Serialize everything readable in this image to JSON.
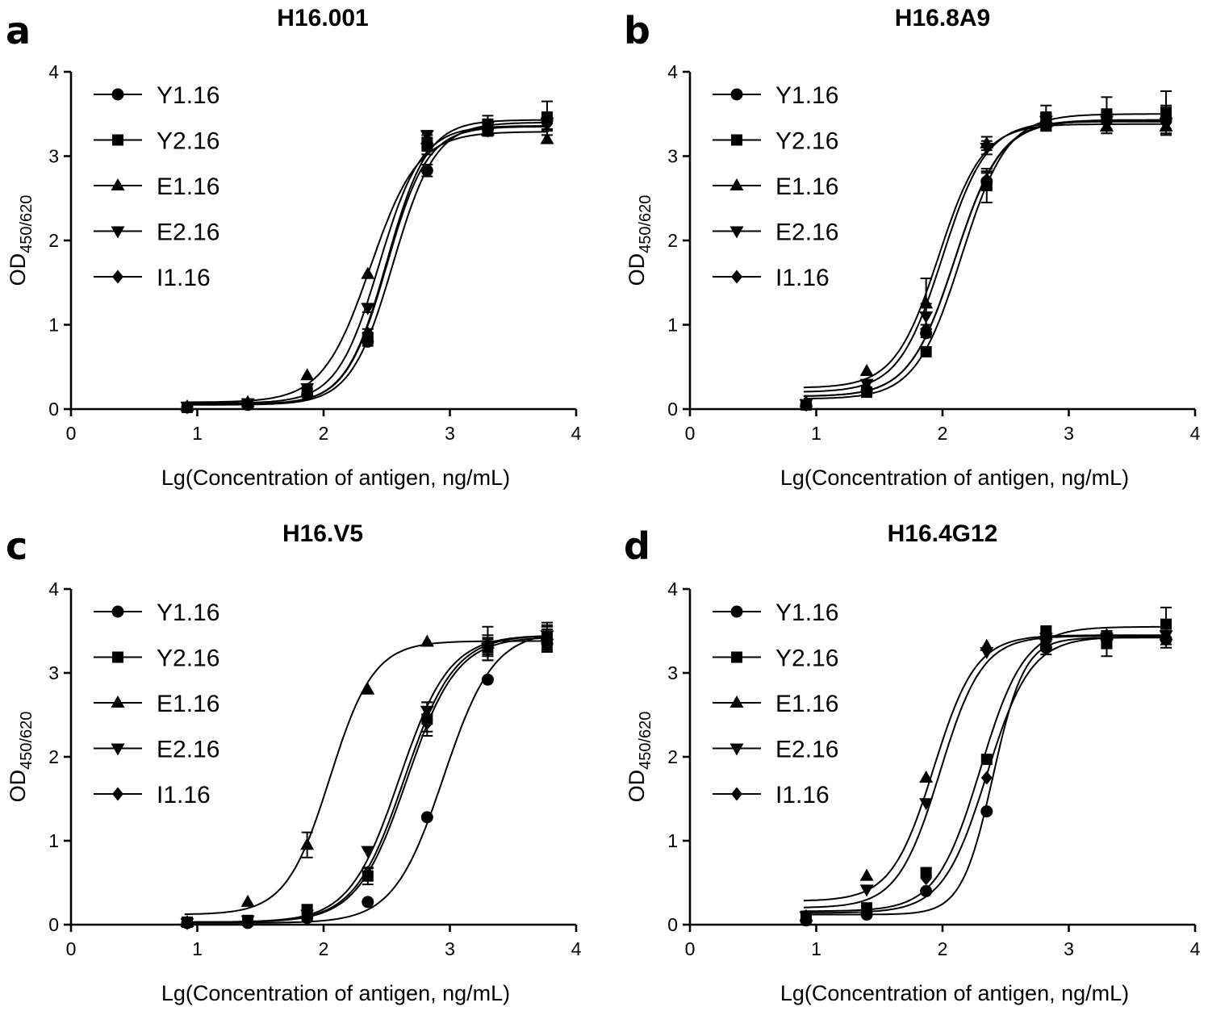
{
  "figure": {
    "panels": [
      "a",
      "b",
      "c",
      "d"
    ]
  },
  "chart_data": [
    {
      "type": "scatter",
      "panel_letter": "a",
      "title": "H16.001",
      "xlabel": "Lg(Concentration of antigen, ng/mL)",
      "ylabel": "OD",
      "ylabel_sub": "450/620",
      "xlim": [
        0,
        4
      ],
      "ylim": [
        0,
        4
      ],
      "xticks": [
        "0",
        "1",
        "2",
        "3",
        "4"
      ],
      "yticks": [
        "0",
        "1",
        "2",
        "3",
        "4"
      ],
      "x": [
        0.92,
        1.4,
        1.87,
        2.35,
        2.82,
        3.3,
        3.77
      ],
      "series": [
        {
          "name": "Y1.16",
          "marker": "circle",
          "values": [
            0.02,
            0.05,
            0.17,
            0.8,
            2.83,
            3.32,
            3.42
          ],
          "errors": [
            0,
            0,
            0,
            0.05,
            0.07,
            0.08,
            0.1
          ],
          "fit": {
            "bottom": 0.05,
            "top": 3.4,
            "ec50": 2.55,
            "hill": 2.6
          }
        },
        {
          "name": "Y2.16",
          "marker": "square",
          "values": [
            0.02,
            0.06,
            0.2,
            0.85,
            3.12,
            3.38,
            3.45
          ],
          "errors": [
            0,
            0,
            0,
            0.05,
            0.1,
            0.1,
            0.2
          ],
          "fit": {
            "bottom": 0.06,
            "top": 3.43,
            "ec50": 2.5,
            "hill": 2.7
          }
        },
        {
          "name": "E1.16",
          "marker": "triangle-up",
          "values": [
            0.03,
            0.08,
            0.4,
            1.6,
            3.2,
            3.3,
            3.2
          ],
          "errors": [
            0,
            0,
            0,
            0,
            0.05,
            0.06,
            0
          ],
          "fit": {
            "bottom": 0.08,
            "top": 3.29,
            "ec50": 2.37,
            "hill": 2.3
          }
        },
        {
          "name": "E2.16",
          "marker": "triangle-down",
          "values": [
            0.03,
            0.07,
            0.25,
            1.2,
            3.25,
            3.35,
            3.4
          ],
          "errors": [
            0,
            0,
            0,
            0.05,
            0.05,
            0.06,
            0.08
          ],
          "fit": {
            "bottom": 0.07,
            "top": 3.36,
            "ec50": 2.44,
            "hill": 2.6
          }
        },
        {
          "name": "I1.16",
          "marker": "diamond",
          "values": [
            0.02,
            0.06,
            0.18,
            0.9,
            3.15,
            3.3,
            3.38
          ],
          "errors": [
            0,
            0,
            0,
            0.05,
            0.05,
            0.06,
            0.08
          ],
          "fit": {
            "bottom": 0.06,
            "top": 3.35,
            "ec50": 2.5,
            "hill": 2.7
          }
        }
      ]
    },
    {
      "type": "scatter",
      "panel_letter": "b",
      "title": "H16.8A9",
      "xlabel": "Lg(Concentration of antigen, ng/mL)",
      "ylabel": "OD",
      "ylabel_sub": "450/620",
      "xlim": [
        0,
        4
      ],
      "ylim": [
        0,
        4
      ],
      "xticks": [
        "0",
        "1",
        "2",
        "3",
        "4"
      ],
      "yticks": [
        "0",
        "1",
        "2",
        "3",
        "4"
      ],
      "x": [
        0.92,
        1.4,
        1.87,
        2.35,
        2.82,
        3.3,
        3.77
      ],
      "series": [
        {
          "name": "Y1.16",
          "marker": "circle",
          "values": [
            0.05,
            0.22,
            0.9,
            2.7,
            3.4,
            3.42,
            3.42
          ],
          "errors": [
            0,
            0,
            0.05,
            0.1,
            0.1,
            0.1,
            0.1
          ],
          "fit": {
            "bottom": 0.15,
            "top": 3.42,
            "ec50": 2.1,
            "hill": 2.4
          }
        },
        {
          "name": "Y2.16",
          "marker": "square",
          "values": [
            0.05,
            0.2,
            0.68,
            2.65,
            3.45,
            3.5,
            3.52
          ],
          "errors": [
            0,
            0,
            0,
            0.2,
            0.15,
            0.2,
            0.25
          ],
          "fit": {
            "bottom": 0.12,
            "top": 3.5,
            "ec50": 2.15,
            "hill": 2.4
          }
        },
        {
          "name": "E1.16",
          "marker": "triangle-up",
          "values": [
            0.08,
            0.45,
            1.25,
            3.15,
            3.4,
            3.35,
            3.35
          ],
          "errors": [
            0,
            0,
            0.3,
            0.08,
            0.08,
            0.08,
            0.1
          ],
          "fit": {
            "bottom": 0.25,
            "top": 3.38,
            "ec50": 1.97,
            "hill": 2.5
          }
        },
        {
          "name": "E2.16",
          "marker": "triangle-down",
          "values": [
            0.06,
            0.3,
            1.1,
            3.1,
            3.42,
            3.42,
            3.4
          ],
          "errors": [
            0,
            0,
            0.15,
            0.08,
            0.08,
            0.1,
            0.1
          ],
          "fit": {
            "bottom": 0.2,
            "top": 3.41,
            "ec50": 2.0,
            "hill": 2.5
          }
        },
        {
          "name": "I1.16",
          "marker": "diamond",
          "values": [
            0.05,
            0.25,
            0.95,
            2.72,
            3.42,
            3.4,
            3.45
          ],
          "errors": [
            0,
            0,
            0.05,
            0.1,
            0.1,
            0.1,
            0.15
          ],
          "fit": {
            "bottom": 0.15,
            "top": 3.43,
            "ec50": 2.1,
            "hill": 2.4
          }
        }
      ]
    },
    {
      "type": "scatter",
      "panel_letter": "c",
      "title": "H16.V5",
      "xlabel": "Lg(Concentration of antigen, ng/mL)",
      "ylabel": "OD",
      "ylabel_sub": "450/620",
      "xlim": [
        0,
        4
      ],
      "ylim": [
        0,
        4
      ],
      "xticks": [
        "0",
        "1",
        "2",
        "3",
        "4"
      ],
      "yticks": [
        "0",
        "1",
        "2",
        "3",
        "4"
      ],
      "x": [
        0.92,
        1.4,
        1.87,
        2.35,
        2.82,
        3.3,
        3.77
      ],
      "series": [
        {
          "name": "Y1.16",
          "marker": "circle",
          "values": [
            0.02,
            0.02,
            0.08,
            0.27,
            1.28,
            2.92,
            3.35
          ],
          "errors": [
            0,
            0,
            0,
            0,
            0,
            0,
            0.1
          ],
          "fit": {
            "bottom": 0.02,
            "top": 3.5,
            "ec50": 2.95,
            "hill": 2.2
          }
        },
        {
          "name": "Y2.16",
          "marker": "square",
          "values": [
            0.03,
            0.05,
            0.18,
            0.58,
            2.45,
            3.3,
            3.42
          ],
          "errors": [
            0,
            0,
            0.05,
            0.1,
            0.2,
            0.15,
            0.15
          ],
          "fit": {
            "bottom": 0.03,
            "top": 3.45,
            "ec50": 2.64,
            "hill": 2.2
          }
        },
        {
          "name": "E1.16",
          "marker": "triangle-up",
          "values": [
            0.03,
            0.27,
            0.95,
            2.8,
            3.37,
            3.35,
            3.45
          ],
          "errors": [
            0,
            0,
            0.15,
            0,
            0,
            0.2,
            0.15
          ],
          "fit": {
            "bottom": 0.12,
            "top": 3.38,
            "ec50": 2.05,
            "hill": 2.5
          }
        },
        {
          "name": "E2.16",
          "marker": "triangle-down",
          "values": [
            0.02,
            0.05,
            0.12,
            0.88,
            2.55,
            3.3,
            3.45
          ],
          "errors": [
            0,
            0,
            0,
            0,
            0.1,
            0.1,
            0.1
          ],
          "fit": {
            "bottom": 0.03,
            "top": 3.45,
            "ec50": 2.6,
            "hill": 2.2
          }
        },
        {
          "name": "I1.16",
          "marker": "diamond",
          "values": [
            0.02,
            0.04,
            0.1,
            0.62,
            2.4,
            3.32,
            3.4
          ],
          "errors": [
            0,
            0,
            0,
            0.05,
            0.1,
            0.1,
            0.12
          ],
          "fit": {
            "bottom": 0.03,
            "top": 3.43,
            "ec50": 2.66,
            "hill": 2.2
          }
        }
      ]
    },
    {
      "type": "scatter",
      "panel_letter": "d",
      "title": "H16.4G12",
      "xlabel": "Lg(Concentration of antigen, ng/mL)",
      "ylabel": "OD",
      "ylabel_sub": "450/620",
      "xlim": [
        0,
        4
      ],
      "ylim": [
        0,
        4
      ],
      "xticks": [
        "0",
        "1",
        "2",
        "3",
        "4"
      ],
      "yticks": [
        "0",
        "1",
        "2",
        "3",
        "4"
      ],
      "x": [
        0.92,
        1.4,
        1.87,
        2.35,
        2.82,
        3.3,
        3.77
      ],
      "series": [
        {
          "name": "Y1.16",
          "marker": "circle",
          "values": [
            0.05,
            0.12,
            0.4,
            1.35,
            3.3,
            3.4,
            3.4
          ],
          "errors": [
            0,
            0,
            0,
            0,
            0.08,
            0.1,
            0.1
          ],
          "fit": {
            "bottom": 0.12,
            "top": 3.42,
            "ec50": 2.4,
            "hill": 3.5
          }
        },
        {
          "name": "Y2.16",
          "marker": "square",
          "values": [
            0.1,
            0.2,
            0.62,
            1.97,
            3.5,
            3.35,
            3.58
          ],
          "errors": [
            0,
            0,
            0.05,
            0,
            0.05,
            0.15,
            0.2
          ],
          "fit": {
            "bottom": 0.16,
            "top": 3.55,
            "ec50": 2.3,
            "hill": 2.5
          }
        },
        {
          "name": "E1.16",
          "marker": "triangle-up",
          "values": [
            0.1,
            0.58,
            1.75,
            3.32,
            3.45,
            3.45,
            3.45
          ],
          "errors": [
            0,
            0,
            0,
            0,
            0.05,
            0.05,
            0.05
          ],
          "fit": {
            "bottom": 0.28,
            "top": 3.45,
            "ec50": 1.93,
            "hill": 2.6
          }
        },
        {
          "name": "E2.16",
          "marker": "triangle-down",
          "values": [
            0.1,
            0.42,
            1.45,
            3.25,
            3.42,
            3.42,
            3.45
          ],
          "errors": [
            0,
            0,
            0,
            0,
            0.05,
            0.05,
            0.05
          ],
          "fit": {
            "bottom": 0.2,
            "top": 3.44,
            "ec50": 1.98,
            "hill": 2.6
          }
        },
        {
          "name": "I1.16",
          "marker": "diamond",
          "values": [
            0.07,
            0.15,
            0.55,
            1.75,
            3.38,
            3.4,
            3.42
          ],
          "errors": [
            0,
            0,
            0,
            0,
            0.05,
            0.08,
            0.08
          ],
          "fit": {
            "bottom": 0.14,
            "top": 3.43,
            "ec50": 2.35,
            "hill": 2.5
          }
        }
      ]
    }
  ]
}
